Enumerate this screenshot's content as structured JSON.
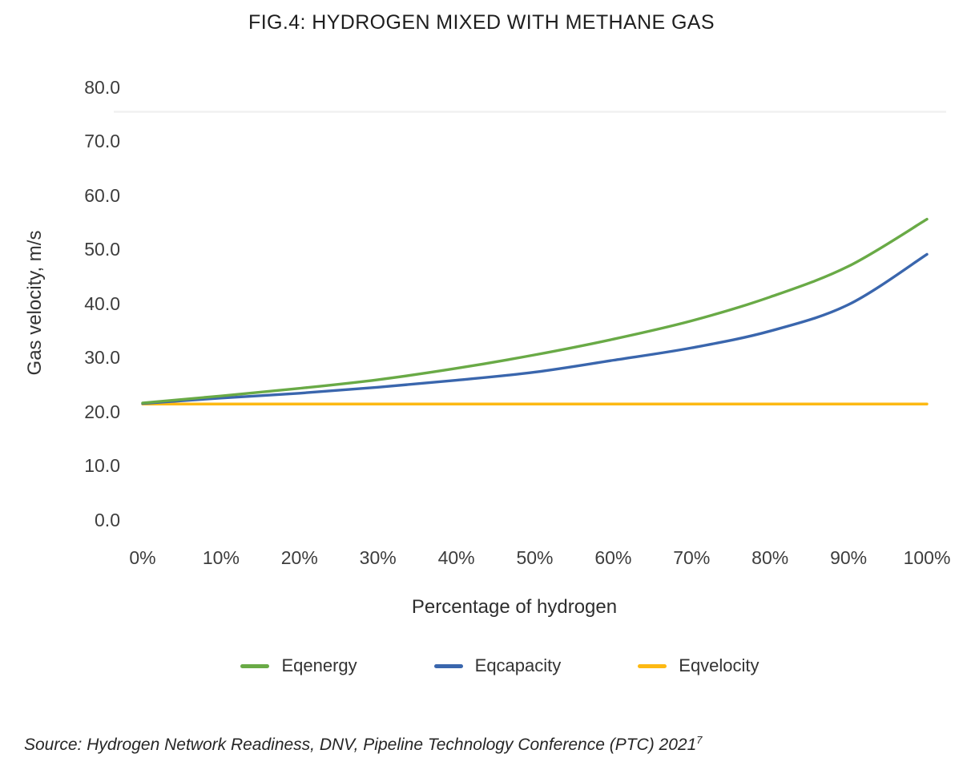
{
  "title": "FIG.4: HYDROGEN MIXED WITH METHANE GAS",
  "source": {
    "text": "Source: Hydrogen Network Readiness, DNV, Pipeline Technology Conference (PTC) 2021",
    "superscript": "7"
  },
  "chart_data": {
    "type": "line",
    "title": "FIG.4: HYDROGEN MIXED WITH METHANE GAS",
    "xlabel": "Percentage of hydrogen",
    "ylabel": "Gas velocity, m/s",
    "x_values": [
      0,
      10,
      20,
      30,
      40,
      50,
      60,
      70,
      80,
      90,
      100
    ],
    "x_tick_labels": [
      "0%",
      "10%",
      "20%",
      "30%",
      "40%",
      "50%",
      "60%",
      "70%",
      "80%",
      "90%",
      "100%"
    ],
    "y_tick_values": [
      0,
      10,
      20,
      30,
      40,
      50,
      60,
      70,
      80
    ],
    "y_tick_labels": [
      "0.0",
      "10.0",
      "20.0",
      "30.0",
      "40.0",
      "50.0",
      "60.0",
      "70.0",
      "80.0"
    ],
    "ylim": [
      0,
      80
    ],
    "xlim_percent": [
      0,
      100
    ],
    "grid": "single faint horizontal line near top of plot",
    "legend_position": "bottom",
    "series": [
      {
        "name": "Eqenergy",
        "color": "#69aa46",
        "values": [
          21.6,
          22.9,
          24.3,
          25.9,
          28.0,
          30.5,
          33.4,
          36.8,
          41.2,
          46.9,
          55.6
        ]
      },
      {
        "name": "Eqcapacity",
        "color": "#3a66ad",
        "values": [
          21.5,
          22.5,
          23.4,
          24.5,
          25.8,
          27.3,
          29.5,
          31.8,
          34.9,
          39.8,
          49.1
        ]
      },
      {
        "name": "Eqvelocity",
        "color": "#fdb913",
        "values": [
          21.4,
          21.4,
          21.4,
          21.4,
          21.4,
          21.4,
          21.4,
          21.4,
          21.4,
          21.4,
          21.4
        ]
      }
    ]
  }
}
